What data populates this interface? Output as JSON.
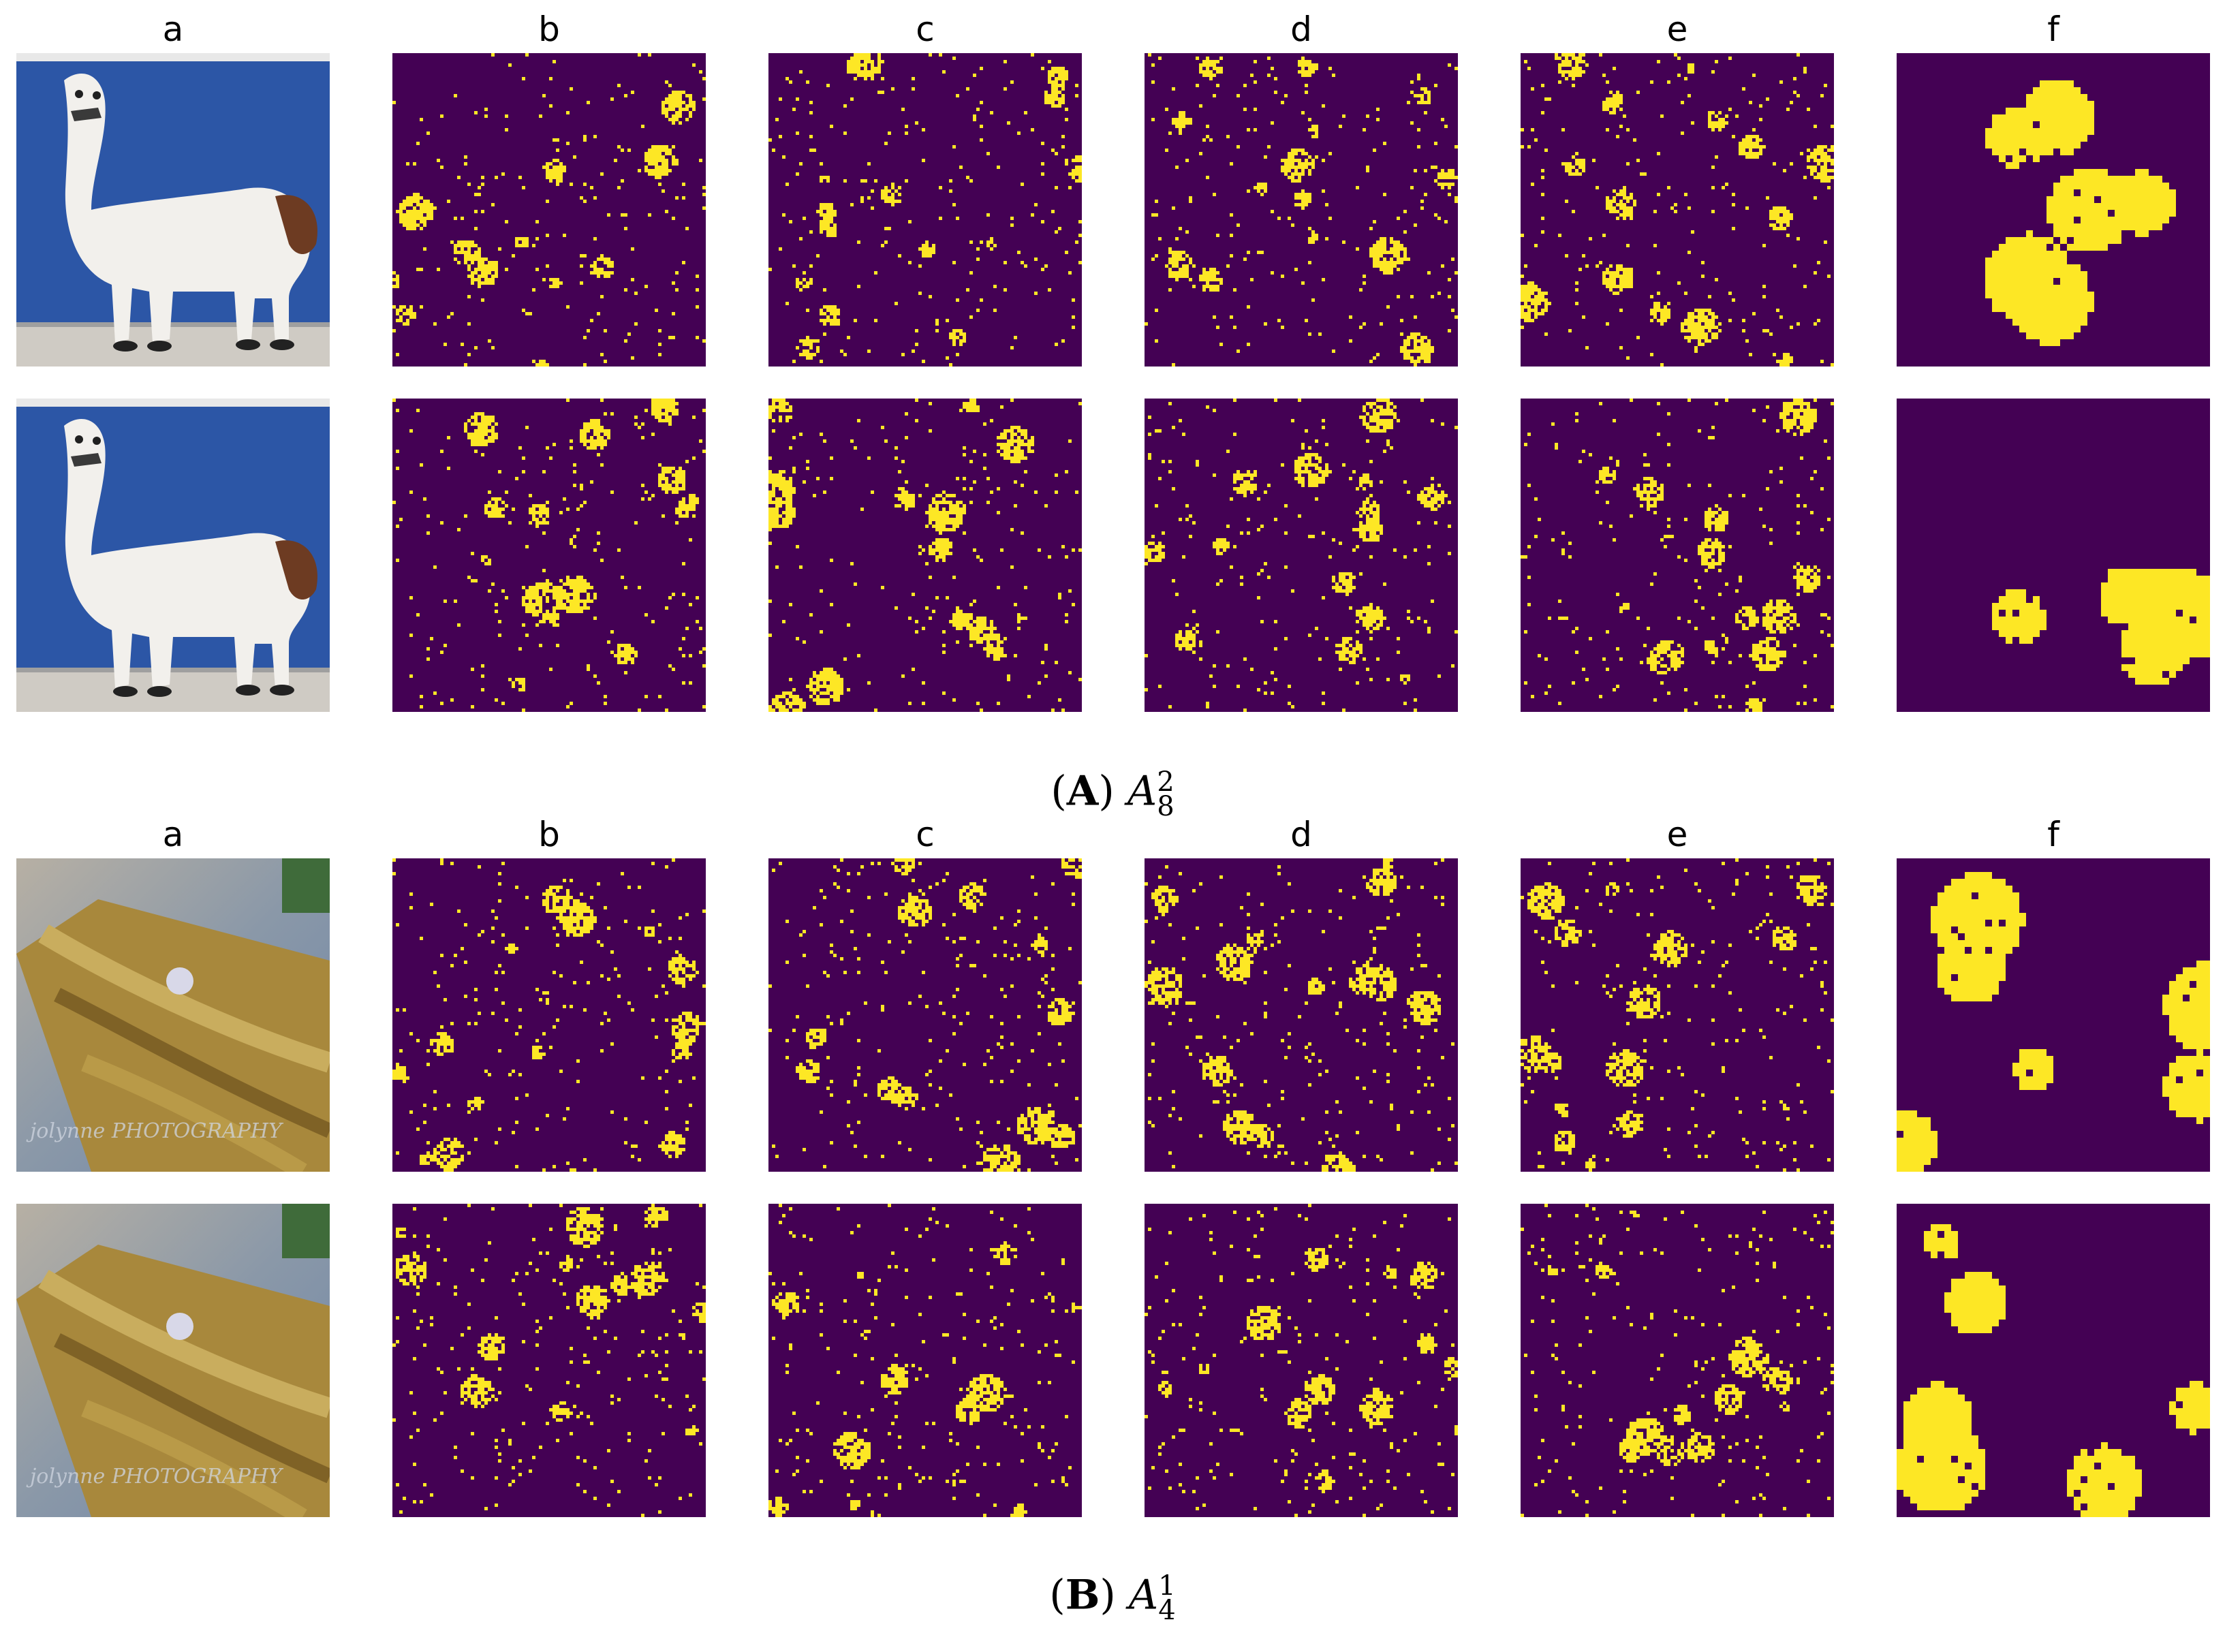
{
  "columns": [
    "a",
    "b",
    "c",
    "d",
    "e",
    "f"
  ],
  "sections": [
    {
      "id": "A",
      "caption": {
        "open": "(",
        "letter": "A",
        "close": ")",
        "symbol": "A",
        "sub": "8",
        "sup": "2"
      },
      "subject": "llama"
    },
    {
      "id": "B",
      "caption": {
        "open": "(",
        "letter": "B",
        "close": ")",
        "symbol": "A",
        "sub": "4",
        "sup": "1"
      },
      "subject": "broom",
      "watermark": "jolynne PHOTOGRAPHY"
    }
  ],
  "colors": {
    "map_background": "#440154",
    "map_foreground": "#fde725"
  }
}
